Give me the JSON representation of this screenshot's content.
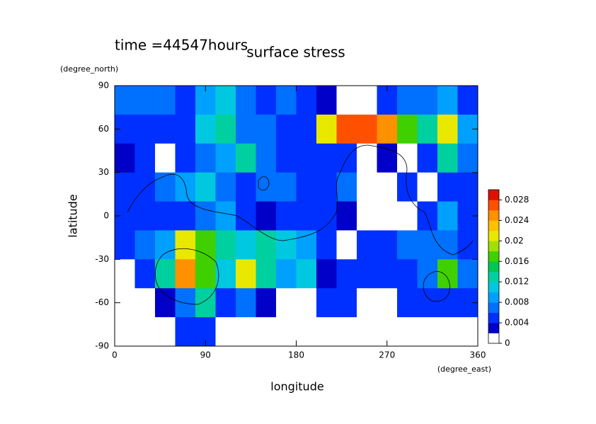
{
  "chart_data": {
    "type": "contour",
    "title": "surface stress",
    "annotation": "time =44547hours",
    "xlabel": "longitude",
    "ylabel": "latitude",
    "xunits": "(degree_east)",
    "yunits": "(degree_north)",
    "xlim": [
      0,
      360
    ],
    "ylim": [
      -90,
      90
    ],
    "xticks": [
      0,
      90,
      180,
      270,
      360
    ],
    "yticks": [
      -90,
      -60,
      -30,
      0,
      30,
      60,
      90
    ],
    "x": [
      10,
      30,
      50,
      70,
      90,
      110,
      130,
      150,
      170,
      190,
      210,
      230,
      250,
      270,
      290,
      310,
      330,
      350
    ],
    "y": [
      80,
      60,
      40,
      20,
      0,
      -20,
      -40,
      -60,
      -80
    ],
    "z": [
      [
        0.006,
        0.006,
        0.006,
        0.005,
        0.008,
        0.01,
        0.006,
        0.005,
        0.006,
        0.005,
        0.003,
        0,
        0,
        0.005,
        0.006,
        0.006,
        0.008,
        0.005
      ],
      [
        0.004,
        0.004,
        0.005,
        0.004,
        0.01,
        0.012,
        0.006,
        0.006,
        0.005,
        0.004,
        0.02,
        0.026,
        0.026,
        0.024,
        0.016,
        0.012,
        0.02,
        0.008
      ],
      [
        0.003,
        0.004,
        0,
        0.004,
        0.006,
        0.008,
        0.012,
        0.006,
        0.005,
        0.004,
        0.004,
        0.005,
        0,
        0.002,
        0,
        0.004,
        0.012,
        0.006
      ],
      [
        0.005,
        0.004,
        0.006,
        0.008,
        0.01,
        0.006,
        0.005,
        0.006,
        0.006,
        0.005,
        0.004,
        0.006,
        0,
        0,
        0.004,
        0,
        0.004,
        0.005
      ],
      [
        0.004,
        0.005,
        0.004,
        0.005,
        0.006,
        0.008,
        0.004,
        0.003,
        0.005,
        0.004,
        0.004,
        0.002,
        0,
        0,
        0,
        0.004,
        0.008,
        0.005
      ],
      [
        0.005,
        0.006,
        0.008,
        0.02,
        0.016,
        0.012,
        0.01,
        0.012,
        0.01,
        0.008,
        0.004,
        0,
        0.004,
        0.004,
        0.006,
        0.006,
        0.006,
        0.004
      ],
      [
        0,
        0.005,
        0.012,
        0.024,
        0.016,
        0.01,
        0.02,
        0.012,
        0.008,
        0.01,
        0.003,
        0.004,
        0.005,
        0.004,
        0.004,
        0.006,
        0.016,
        0.006
      ],
      [
        0,
        0,
        0.003,
        0.006,
        0.012,
        0.004,
        0.006,
        0.003,
        0,
        0,
        0.005,
        0.004,
        0,
        0,
        0.004,
        0.005,
        0.004,
        0.005
      ],
      [
        0,
        0,
        0,
        0.004,
        0.004,
        0,
        0,
        0,
        0,
        0,
        0,
        0,
        0,
        0,
        0,
        0,
        0,
        0
      ]
    ],
    "clim": [
      0,
      0.03
    ],
    "cticks": [
      0,
      0.004,
      0.008,
      0.012,
      0.016,
      0.02,
      0.024,
      0.028
    ],
    "colors": [
      "#ffffff",
      "#0000c8",
      "#0030ff",
      "#0070ff",
      "#00a0ff",
      "#00c8e0",
      "#00d0a0",
      "#00c850",
      "#40d000",
      "#a0e000",
      "#e8e800",
      "#ffc000",
      "#ff9000",
      "#ff5000",
      "#e01000"
    ]
  }
}
